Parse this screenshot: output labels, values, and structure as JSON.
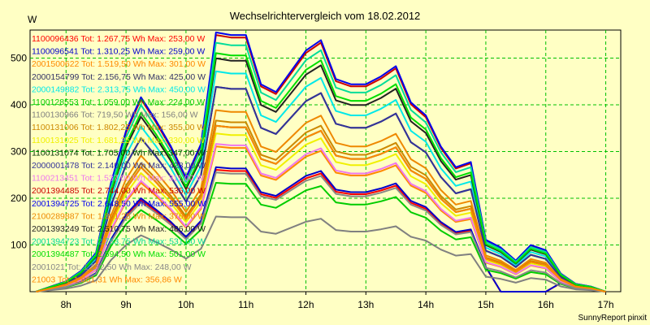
{
  "chart_data": {
    "type": "line",
    "title": "Wechselrichtervergleich vom 18.02.2012",
    "ylabel": "W",
    "xlabel": "",
    "footer": "SunnyReport pinxit",
    "ylim": [
      0,
      560
    ],
    "xlim": [
      7.4,
      17.25
    ],
    "yticks": [
      100,
      200,
      300,
      400,
      500
    ],
    "xticks": [
      {
        "v": 8,
        "label": "8h"
      },
      {
        "v": 9,
        "label": "9h"
      },
      {
        "v": 10,
        "label": "10h"
      },
      {
        "v": 11,
        "label": "11h"
      },
      {
        "v": 12,
        "label": "12h"
      },
      {
        "v": 13,
        "label": "13h"
      },
      {
        "v": 14,
        "label": "14h"
      },
      {
        "v": 15,
        "label": "15h"
      },
      {
        "v": 16,
        "label": "16h"
      },
      {
        "v": 17,
        "label": "17h"
      }
    ],
    "grid": true,
    "legend_position": "top-left",
    "x": [
      7.5,
      7.75,
      8.0,
      8.25,
      8.5,
      8.75,
      9.0,
      9.25,
      9.5,
      9.75,
      10.0,
      10.25,
      10.5,
      10.75,
      11.0,
      11.25,
      11.5,
      11.75,
      12.0,
      12.25,
      12.5,
      12.75,
      13.0,
      13.25,
      13.5,
      13.75,
      14.0,
      14.25,
      14.5,
      14.75,
      15.0,
      15.25,
      15.5,
      15.75,
      16.0,
      16.25,
      16.5,
      16.75,
      17.0
    ],
    "series": [
      {
        "name": "1100096436 Tot: 1.267,75 Wh Max: 253,00 W",
        "color": "#ff0000",
        "scale": 0.47,
        "drop": [
          15.25,
          16.0
        ]
      },
      {
        "name": "1100096541 Tot: 1.310,25 Wh Max: 259,00 W",
        "color": "#0000cc",
        "scale": 0.48,
        "drop": [
          15.25,
          16.0
        ]
      },
      {
        "name": "2001500622 Tot: 1.519,50 Wh Max: 301,00 W",
        "color": "#ff8800",
        "scale": 0.56
      },
      {
        "name": "2000154799 Tot: 2.156,75 Wh Max: 425,00 W",
        "color": "#333366",
        "scale": 0.79
      },
      {
        "name": "2000149882 Tot: 2.313,75 Wh Max: 450,00 W",
        "color": "#00e8e8",
        "scale": 0.85
      },
      {
        "name": "1100128553 Tot: 1.059,00 Wh Max: 224,00 W",
        "color": "#00cc00",
        "scale": 0.42
      },
      {
        "name": "1100130966 Tot: 719,50 Wh Max: 156,00 W",
        "color": "#808080",
        "scale": 0.29
      },
      {
        "name": "1100131006 Tot: 1.802,25 Wh Max: 355,00 W",
        "color": "#cc8800",
        "scale": 0.66
      },
      {
        "name": "1100131025 Tot: 1.681,25 Wh Max: 330,00 W",
        "color": "#f0f000",
        "scale": 0.61
      },
      {
        "name": "1100131074 Tot: 1.705,00 Wh Max: 347,00 W",
        "color": "#003300",
        "scale": 0.64
      },
      {
        "name": "2000001478 Tot: 2.140,00 Wh Max: 428,00 W",
        "color": "#333399",
        "scale": 0.79
      },
      {
        "name": "1100213451 Tot: 1.537,00 Wh Max: 311,00 W",
        "color": "#ee77ee",
        "scale": 0.57
      },
      {
        "name": "2001394485 Tot: 2.744,00 Wh Max: 535,00 W",
        "color": "#cc0000",
        "scale": 0.99
      },
      {
        "name": "2001394725 Tot: 2.648,50 Wh Max: 555,00 W",
        "color": "#0000ee",
        "scale": 1.0
      },
      {
        "name": "2100289887 Tot: 1.801,25 Wh Max: 376,00 W",
        "color": "#ee8800",
        "scale": 0.7
      },
      {
        "name": "2001393249 Tot: 2.510,75 Wh Max: 486,00 W",
        "color": "#222222",
        "scale": 0.9
      },
      {
        "name": "2001394723 Tot: 2.753,75 Wh Max: 531,00 W",
        "color": "#00dd99",
        "scale": 0.96
      },
      {
        "name": "2001394487 Tot: 2.594,50 Wh Max: 501,00 W",
        "color": "#00dd00",
        "scale": 0.92
      },
      {
        "name": "2001021 Tot: 1.252,50 Wh Max: 248,00 W",
        "color": "#888888",
        "scale": 0.46
      },
      {
        "name": "21003 Tot: 1.861,31 Wh Max: 356,86 W",
        "color": "#ff8800",
        "scale": 0.64
      }
    ],
    "shape": [
      0,
      0.02,
      0.04,
      0.08,
      0.15,
      0.42,
      0.62,
      0.75,
      0.66,
      0.56,
      0.44,
      0.57,
      1.0,
      0.99,
      0.99,
      0.8,
      0.77,
      0.85,
      0.93,
      0.97,
      0.82,
      0.8,
      0.8,
      0.83,
      0.87,
      0.73,
      0.68,
      0.56,
      0.48,
      0.5,
      0.2,
      0.17,
      0.12,
      0.18,
      0.16,
      0.07,
      0.03,
      0.02,
      0
    ]
  }
}
